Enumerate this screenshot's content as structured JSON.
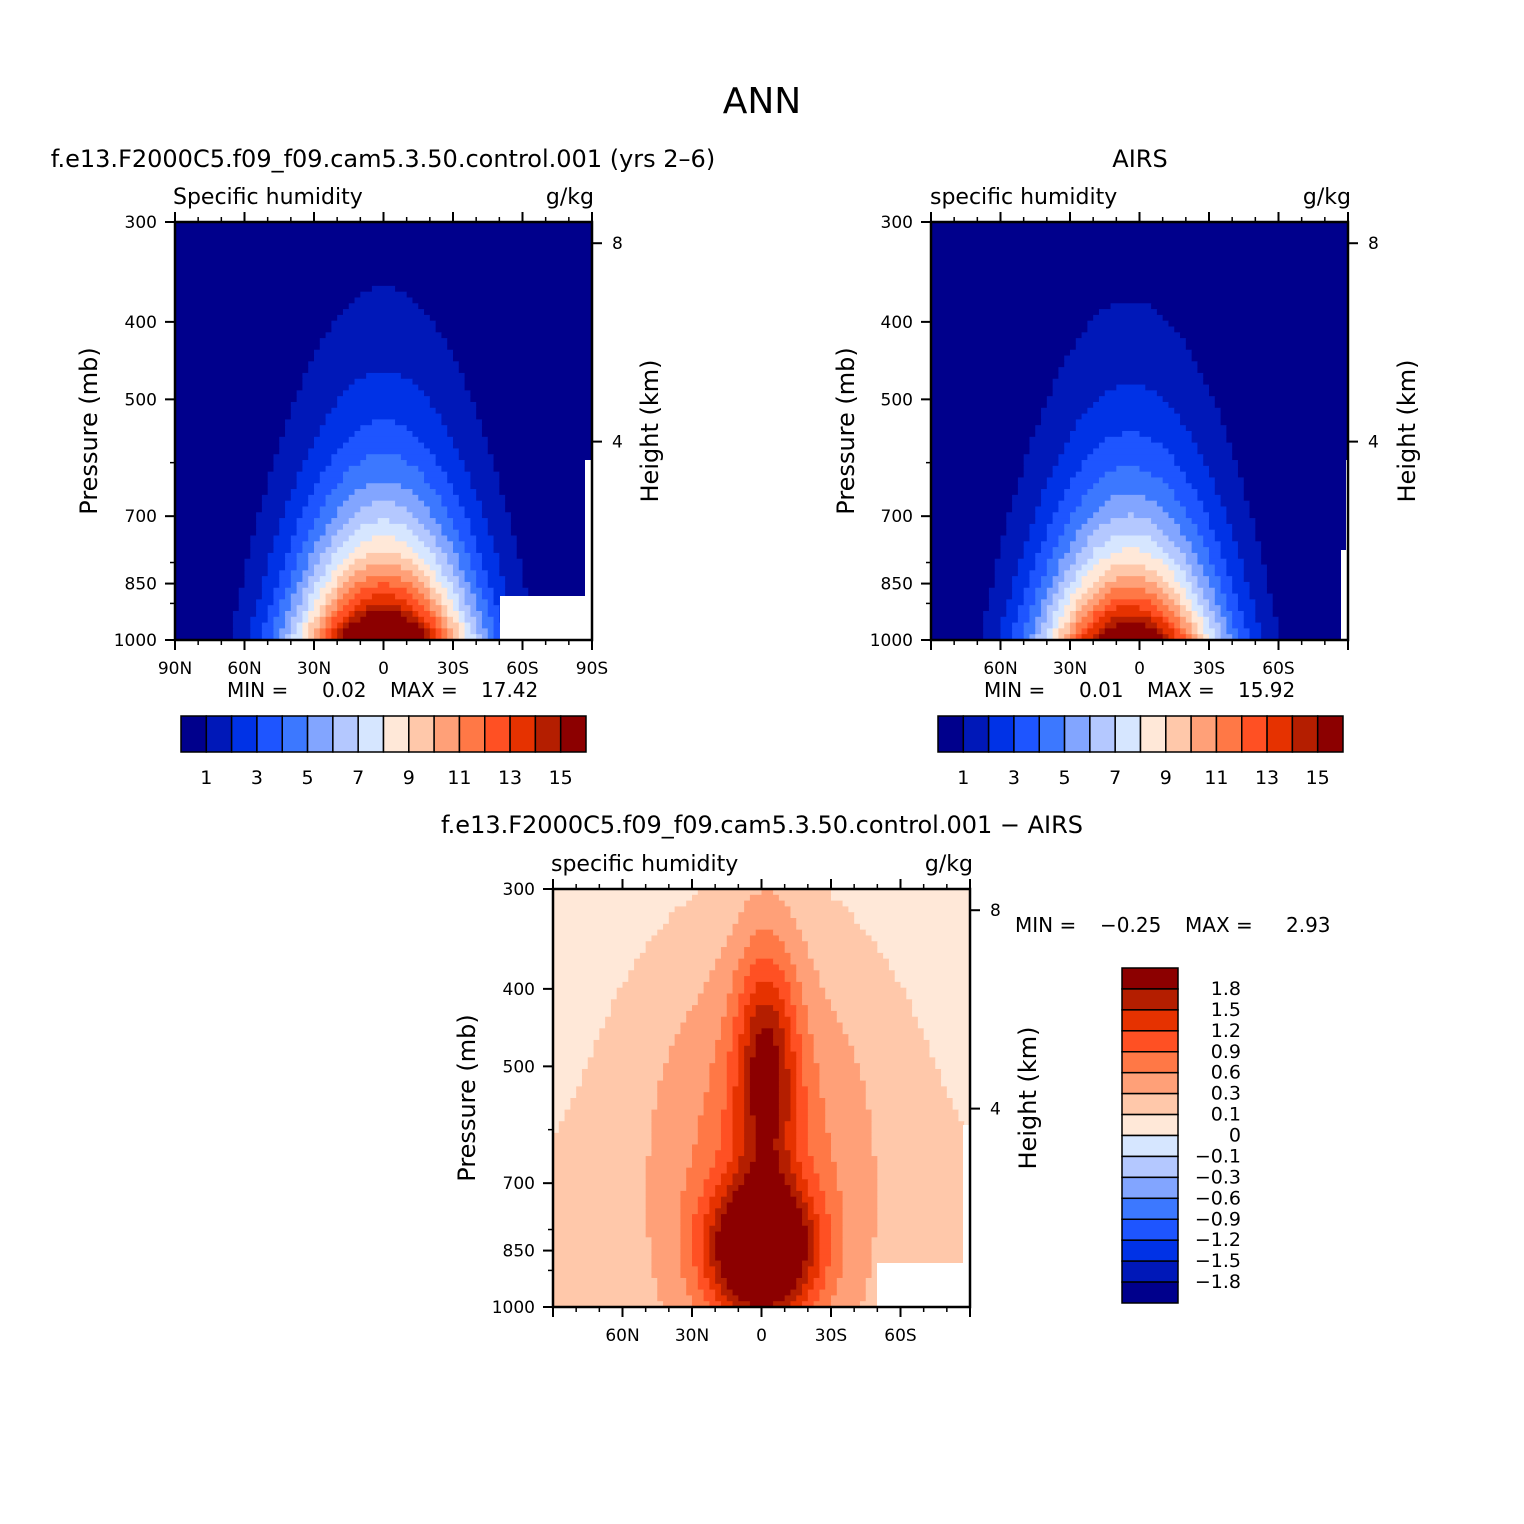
{
  "title": "ANN",
  "panels": [
    {
      "id": "model",
      "case_title": "f.e13.F2000C5.f09_f09.cam5.3.50.control.001 (yrs 2–6)",
      "left_string": "Specific humidity",
      "right_string": "g/kg",
      "ylabel": "Pressure (mb)",
      "y2label": "Height (km)",
      "min_label": "MIN =",
      "min_value": "0.02",
      "max_label": "MAX =",
      "max_value": "17.42"
    },
    {
      "id": "obs",
      "case_title": "AIRS",
      "left_string": "specific humidity",
      "right_string": "g/kg",
      "ylabel": "Pressure (mb)",
      "y2label": "Height (km)",
      "min_label": "MIN =",
      "min_value": "0.01",
      "max_label": "MAX =",
      "max_value": "15.92"
    },
    {
      "id": "diff",
      "case_title": "f.e13.F2000C5.f09_f09.cam5.3.50.control.001 − AIRS",
      "left_string": "specific humidity",
      "right_string": "g/kg",
      "ylabel": "Pressure (mb)",
      "y2label": "Height (km)",
      "min_label": "MIN =",
      "min_value": "−0.25",
      "max_label": "MAX =",
      "max_value": "2.93"
    }
  ],
  "chart_data": [
    {
      "type": "contour",
      "panel": "model",
      "x_axis": "latitude",
      "xlim": [
        90,
        -90
      ],
      "x_ticks": [
        90,
        60,
        30,
        0,
        -30,
        -60,
        -90
      ],
      "x_tick_labels": [
        "90N",
        "60N",
        "30N",
        "0",
        "30S",
        "60S",
        "90S"
      ],
      "y_axis": "pressure (log)",
      "ylim": [
        1000,
        300
      ],
      "y_ticks": [
        300,
        400,
        500,
        700,
        850,
        1000
      ],
      "y_tick_labels": [
        "300",
        "400",
        "500",
        "700",
        "850",
        "1000"
      ],
      "y2_ticks_km": [
        4,
        8
      ],
      "y2_tick_labels": [
        "4",
        "8"
      ],
      "contour_levels": [
        1,
        2,
        3,
        4,
        5,
        6,
        7,
        8,
        9,
        10,
        11,
        12,
        13,
        14,
        15
      ],
      "colorbar_labels": [
        "1",
        "3",
        "5",
        "7",
        "9",
        "11",
        "13",
        "15"
      ],
      "peak": {
        "lat": 0,
        "pressure": 1000,
        "value": 17.42
      },
      "min": 0.02,
      "max": 17.42
    },
    {
      "type": "contour",
      "panel": "obs",
      "x_axis": "latitude",
      "xlim": [
        90,
        -90
      ],
      "x_ticks": [
        60,
        30,
        0,
        -30,
        -60
      ],
      "x_tick_labels": [
        "60N",
        "30N",
        "0",
        "30S",
        "60S"
      ],
      "y_axis": "pressure (log)",
      "ylim": [
        1000,
        300
      ],
      "y_ticks": [
        300,
        400,
        500,
        700,
        850,
        1000
      ],
      "y_tick_labels": [
        "300",
        "400",
        "500",
        "700",
        "850",
        "1000"
      ],
      "y2_ticks_km": [
        4,
        8
      ],
      "y2_tick_labels": [
        "4",
        "8"
      ],
      "contour_levels": [
        1,
        2,
        3,
        4,
        5,
        6,
        7,
        8,
        9,
        10,
        11,
        12,
        13,
        14,
        15
      ],
      "colorbar_labels": [
        "1",
        "3",
        "5",
        "7",
        "9",
        "11",
        "13",
        "15"
      ],
      "peak": {
        "lat": 5,
        "pressure": 1000,
        "value": 15.92
      },
      "min": 0.01,
      "max": 15.92
    },
    {
      "type": "contour",
      "panel": "diff",
      "x_axis": "latitude",
      "xlim": [
        90,
        -90
      ],
      "x_ticks": [
        60,
        30,
        0,
        -30,
        -60
      ],
      "x_tick_labels": [
        "60N",
        "30N",
        "0",
        "30S",
        "60S"
      ],
      "y_axis": "pressure (log)",
      "ylim": [
        1000,
        300
      ],
      "y_ticks": [
        300,
        400,
        500,
        700,
        850,
        1000
      ],
      "y_tick_labels": [
        "300",
        "400",
        "500",
        "700",
        "850",
        "1000"
      ],
      "y2_ticks_km": [
        4,
        8
      ],
      "y2_tick_labels": [
        "4",
        "8"
      ],
      "contour_levels": [
        -1.8,
        -1.5,
        -1.2,
        -0.9,
        -0.6,
        -0.3,
        -0.1,
        0,
        0.1,
        0.3,
        0.6,
        0.9,
        1.2,
        1.5,
        1.8
      ],
      "colorbar_labels": [
        "1.8",
        "1.5",
        "1.2",
        "0.9",
        "0.6",
        "0.3",
        "0.1",
        "0",
        "−0.1",
        "−0.3",
        "−0.6",
        "−0.9",
        "−1.2",
        "−1.5",
        "−1.8"
      ],
      "peak": {
        "lat": 0,
        "pressure": 850,
        "value": 2.93
      },
      "min": -0.25,
      "max": 2.93
    }
  ],
  "palette_abs": [
    "#00008c",
    "#0018b8",
    "#0032e6",
    "#1e55ff",
    "#3c78ff",
    "#82a5ff",
    "#b4c8ff",
    "#d6e6ff",
    "#ffe8d8",
    "#ffc8aa",
    "#ffa078",
    "#ff7846",
    "#ff5023",
    "#e63200",
    "#b41e00",
    "#8c0000"
  ],
  "palette_diff": [
    "#00008c",
    "#0018b8",
    "#0032e6",
    "#1e55ff",
    "#3c78ff",
    "#82a5ff",
    "#b4c8ff",
    "#d6e6ff",
    "#ffe8d8",
    "#ffc8aa",
    "#ffa078",
    "#ff7846",
    "#ff5023",
    "#e63200",
    "#b41e00",
    "#8c0000"
  ]
}
